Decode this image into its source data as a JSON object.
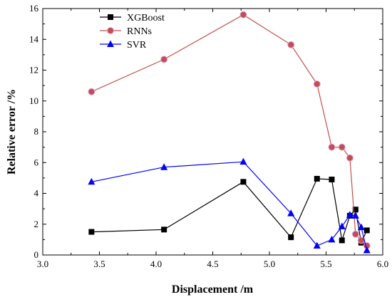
{
  "chart_data": {
    "type": "line",
    "xlabel": "Displacement /m",
    "ylabel": "Relative error /%",
    "xlim": [
      3.0,
      6.0
    ],
    "ylim": [
      0,
      16
    ],
    "xticks": [
      "3.0",
      "3.5",
      "4.0",
      "4.5",
      "5.0",
      "5.5",
      "6.0"
    ],
    "yticks": [
      "0",
      "2",
      "4",
      "6",
      "8",
      "10",
      "12",
      "14",
      "16"
    ],
    "grid": false,
    "legend_position": "top-left",
    "series": [
      {
        "name": "XGBoost",
        "color": "#000000",
        "marker": "square",
        "x": [
          3.43,
          4.07,
          4.77,
          5.19,
          5.42,
          5.55,
          5.64,
          5.71,
          5.76,
          5.81,
          5.86
        ],
        "y": [
          1.5,
          1.65,
          4.75,
          1.15,
          4.95,
          4.9,
          0.95,
          2.55,
          2.95,
          0.8,
          1.6
        ]
      },
      {
        "name": "RNNs",
        "color": "#c0504d",
        "marker": "circle",
        "x": [
          3.43,
          4.07,
          4.77,
          5.19,
          5.42,
          5.55,
          5.64,
          5.71,
          5.76,
          5.81,
          5.86
        ],
        "y": [
          10.6,
          12.7,
          15.6,
          13.65,
          11.1,
          7.0,
          7.0,
          6.3,
          1.35,
          0.95,
          0.6
        ]
      },
      {
        "name": "SVR",
        "color": "#0000ff",
        "marker": "triangle",
        "x": [
          3.43,
          4.07,
          4.77,
          5.19,
          5.42,
          5.55,
          5.64,
          5.71,
          5.76,
          5.81,
          5.86
        ],
        "y": [
          4.75,
          5.7,
          6.05,
          2.7,
          0.6,
          1.0,
          1.85,
          2.6,
          2.55,
          1.8,
          0.3
        ]
      }
    ]
  }
}
